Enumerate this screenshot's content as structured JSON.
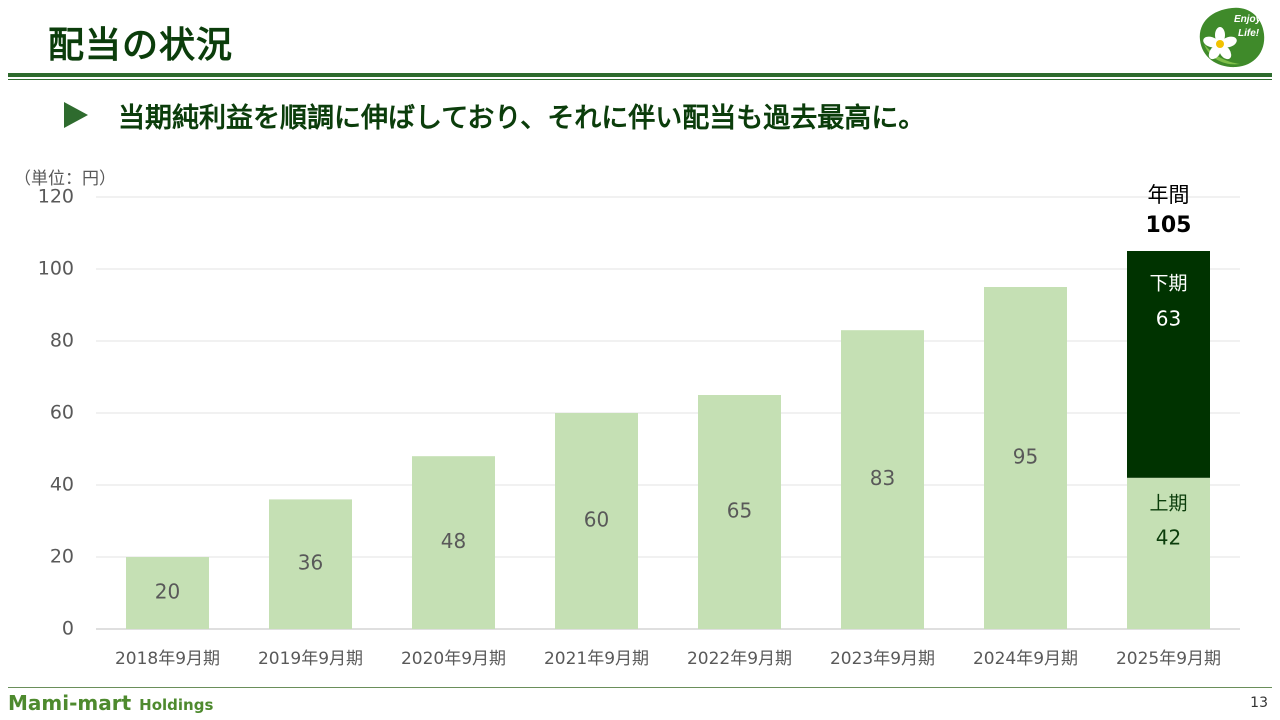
{
  "header": {
    "title": "配当の状況",
    "subtitle": "当期純利益を順調に伸ばしており、それに伴い配当も過去最高に。",
    "logo_line1": "Enjoy",
    "logo_line2": "Life!"
  },
  "footer": {
    "brand": "Mami-mart",
    "brand_suffix": "Holdings",
    "page_number": "13"
  },
  "chart_data": {
    "type": "bar",
    "unit_label": "（単位：円）",
    "categories": [
      "2018年9月期",
      "2019年9月期",
      "2020年9月期",
      "2021年9月期",
      "2022年9月期",
      "2023年9月期",
      "2024年9月期",
      "2025年9月期"
    ],
    "values": [
      20,
      36,
      48,
      60,
      65,
      83,
      95,
      105
    ],
    "ylim": [
      0,
      120
    ],
    "yticks": [
      0,
      20,
      40,
      60,
      80,
      100,
      120
    ],
    "grid": true,
    "stacked_last": {
      "first_half_label": "上期",
      "first_half_value": 42,
      "second_half_label": "下期",
      "second_half_value": 63,
      "total_label": "年間",
      "total_value": 105
    },
    "colors": {
      "bar": "#c5e0b4",
      "second_half": "#003300",
      "grid": "#e3e3e3",
      "axis": "#bfbfbf",
      "tick_text": "#595959"
    }
  }
}
